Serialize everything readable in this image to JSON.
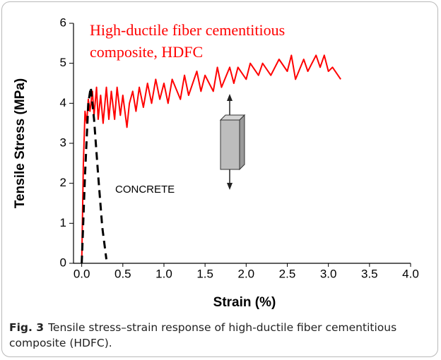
{
  "chart_data": {
    "type": "line",
    "x_label": "Strain (%)",
    "y_label": "Tensile Stress (MPa)",
    "xlim": [
      -0.1,
      4.0
    ],
    "xticks": [
      {
        "value": 0,
        "label": "0.0"
      },
      0.5,
      {
        "value": 1,
        "label": "1.0"
      },
      1.5,
      {
        "value": 2,
        "label": "2.0"
      },
      2.5,
      {
        "value": 3,
        "label": "3.0"
      },
      3.5,
      {
        "value": 4,
        "label": "4.0"
      }
    ],
    "ylim": [
      0,
      6
    ],
    "yticks": [
      0,
      1,
      2,
      3,
      4,
      5,
      6
    ],
    "series": [
      {
        "color": "#ff0000",
        "dashed": false,
        "x": [
          0,
          0.02,
          0.04,
          0.06,
          0.08,
          0.1,
          0.13,
          0.15,
          0.18,
          0.2,
          0.23,
          0.26,
          0.3,
          0.33,
          0.36,
          0.4,
          0.43,
          0.47,
          0.5,
          0.55,
          0.58,
          0.62,
          0.66,
          0.7,
          0.75,
          0.8,
          0.85,
          0.9,
          0.95,
          1.0,
          1.05,
          1.1,
          1.2,
          1.25,
          1.3,
          1.4,
          1.45,
          1.5,
          1.6,
          1.65,
          1.7,
          1.8,
          1.85,
          1.9,
          2.0,
          2.05,
          2.15,
          2.2,
          2.3,
          2.4,
          2.5,
          2.55,
          2.6,
          2.7,
          2.75,
          2.85,
          2.9,
          2.95,
          3.0,
          3.05,
          3.15
        ],
        "values": [
          0,
          2.5,
          3.8,
          3.5,
          4.1,
          3.8,
          4.3,
          3.7,
          4.4,
          3.6,
          4.2,
          3.5,
          4.4,
          3.6,
          4.3,
          3.6,
          4.4,
          3.7,
          4.2,
          3.4,
          4.0,
          4.3,
          3.8,
          4.4,
          3.9,
          4.5,
          4.0,
          4.6,
          4.1,
          4.5,
          4.0,
          4.6,
          4.1,
          4.7,
          4.2,
          4.8,
          4.3,
          4.7,
          4.3,
          4.9,
          4.4,
          4.9,
          4.5,
          4.9,
          4.6,
          5.0,
          4.7,
          5.0,
          4.7,
          5.1,
          4.8,
          5.2,
          4.6,
          5.1,
          4.8,
          5.2,
          4.9,
          5.2,
          4.8,
          4.9,
          4.6
        ]
      },
      {
        "color": "#000000",
        "dashed": true,
        "x": [
          0,
          0.04,
          0.08,
          0.11,
          0.15,
          0.2,
          0.25,
          0.3
        ],
        "values": [
          0,
          2.2,
          4.0,
          4.4,
          3.6,
          2.2,
          0.9,
          0.1
        ]
      }
    ],
    "annotations": [
      "High-ductile fiber cementitious",
      "composite, HDFC",
      "CONCRETE"
    ]
  },
  "caption": {
    "label": "Fig. 3",
    "text": "Tensile stress–strain response of high-ductile fiber cementitious composite (HDFC)."
  }
}
